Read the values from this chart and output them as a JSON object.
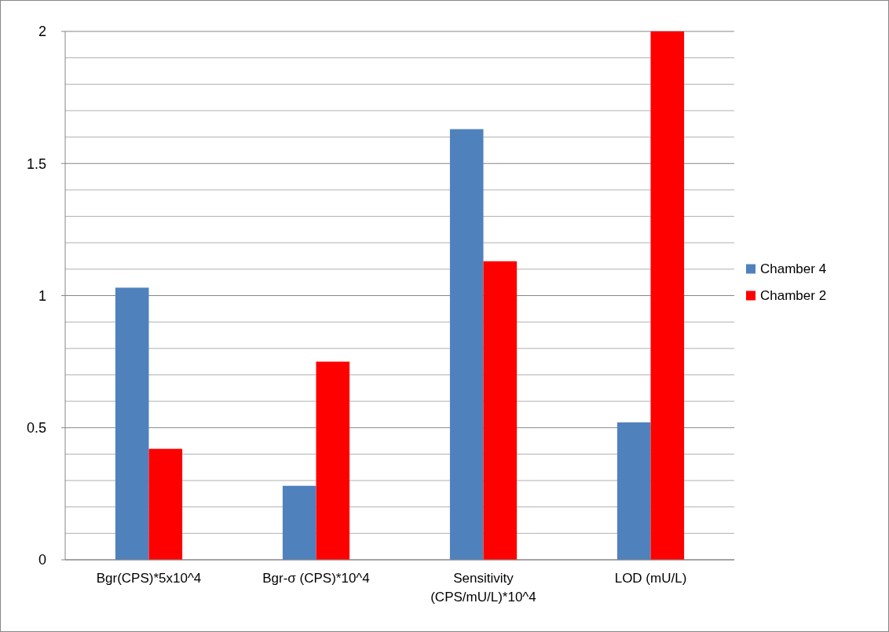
{
  "chart_data": {
    "type": "bar",
    "categories": [
      "Bgr(CPS)*5x10^4",
      "Bgr-σ (CPS)*10^4",
      "Sensitivity (CPS/mU/L)*10^4",
      "LOD (mU/L)"
    ],
    "series": [
      {
        "name": "Chamber 4",
        "color": "#4f81bd",
        "values": [
          1.03,
          0.28,
          1.63,
          0.52
        ]
      },
      {
        "name": "Chamber 2",
        "color": "#ff0000",
        "values": [
          0.42,
          0.75,
          1.13,
          2.0
        ]
      }
    ],
    "ylim": [
      0,
      2
    ],
    "yticks": [
      0,
      {
        "value": 0.1,
        "label": null
      },
      {
        "value": 0.2,
        "label": null
      },
      {
        "value": 0.3,
        "label": null
      },
      {
        "value": 0.4,
        "label": null
      },
      0.5,
      {
        "value": 0.6,
        "label": null
      },
      {
        "value": 0.7,
        "label": null
      },
      {
        "value": 0.8,
        "label": null
      },
      {
        "value": 0.9,
        "label": null
      },
      1,
      {
        "value": 1.1,
        "label": null
      },
      {
        "value": 1.2,
        "label": null
      },
      {
        "value": 1.3,
        "label": null
      },
      {
        "value": 1.4,
        "label": null
      },
      1.5,
      {
        "value": 1.6,
        "label": null
      },
      {
        "value": 1.7,
        "label": null
      },
      {
        "value": 1.8,
        "label": null
      },
      {
        "value": 1.9,
        "label": null
      },
      2
    ],
    "grid": true,
    "legend": "right"
  }
}
